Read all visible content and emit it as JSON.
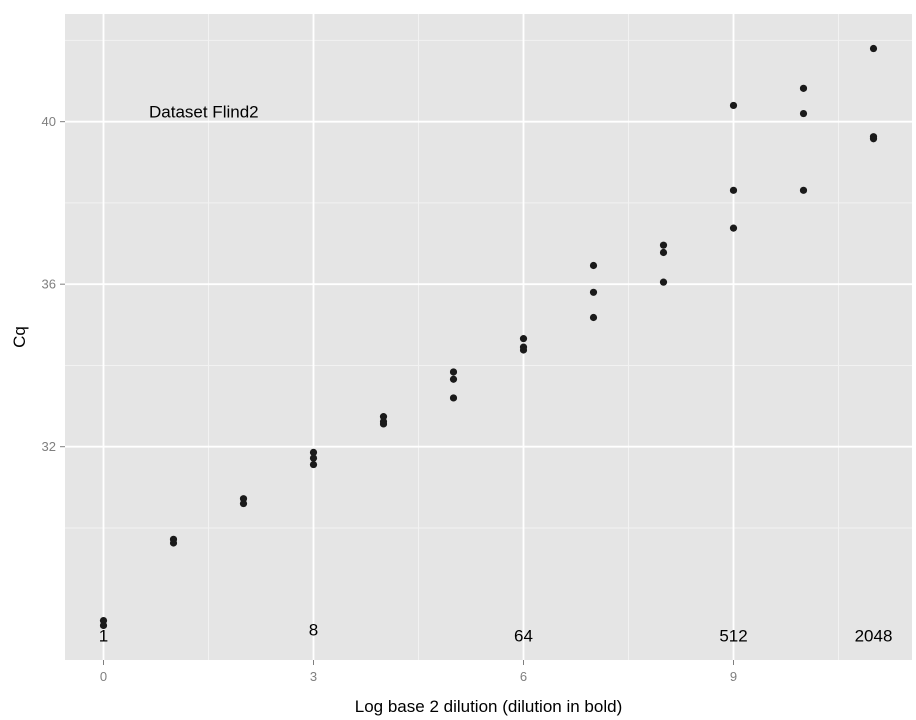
{
  "chart_data": {
    "type": "scatter",
    "title": "",
    "xlabel": "Log base 2 dilution (dilution in bold)",
    "ylabel": "Cq",
    "xlim": [
      -0.55,
      11.55
    ],
    "ylim": [
      26.75,
      42.65
    ],
    "x_ticks": [
      0,
      3,
      6,
      9
    ],
    "x_tick_labels": [
      "0",
      "3",
      "6",
      "9"
    ],
    "y_ticks": [
      32,
      36,
      40
    ],
    "y_tick_labels": [
      "32",
      "36",
      "40"
    ],
    "grid": true,
    "legend": "none",
    "annotation": {
      "text": "Dataset Flind2",
      "x": 0.65,
      "y": 40.1
    },
    "dilution_labels": [
      {
        "text": "1",
        "x": 0,
        "y": 27.2
      },
      {
        "text": "8",
        "x": 3,
        "y": 27.35
      },
      {
        "text": "64",
        "x": 6,
        "y": 27.2
      },
      {
        "text": "512",
        "x": 9,
        "y": 27.2
      },
      {
        "text": "2048",
        "x": 11,
        "y": 27.2
      }
    ],
    "points": [
      {
        "x": 0,
        "y": 27.72
      },
      {
        "x": 0,
        "y": 27.6
      },
      {
        "x": 1,
        "y": 29.72
      },
      {
        "x": 1,
        "y": 29.63
      },
      {
        "x": 2,
        "y": 30.72
      },
      {
        "x": 2,
        "y": 30.6
      },
      {
        "x": 3,
        "y": 31.86
      },
      {
        "x": 3,
        "y": 31.72
      },
      {
        "x": 3,
        "y": 31.56
      },
      {
        "x": 4,
        "y": 32.74
      },
      {
        "x": 4,
        "y": 32.62
      },
      {
        "x": 4,
        "y": 32.56
      },
      {
        "x": 5,
        "y": 33.84
      },
      {
        "x": 5,
        "y": 33.66
      },
      {
        "x": 5,
        "y": 33.2
      },
      {
        "x": 6,
        "y": 34.66
      },
      {
        "x": 6,
        "y": 34.45
      },
      {
        "x": 6,
        "y": 34.38
      },
      {
        "x": 7,
        "y": 36.46
      },
      {
        "x": 7,
        "y": 35.8
      },
      {
        "x": 7,
        "y": 35.18
      },
      {
        "x": 8,
        "y": 36.96
      },
      {
        "x": 8,
        "y": 36.78
      },
      {
        "x": 8,
        "y": 36.05
      },
      {
        "x": 9,
        "y": 40.4
      },
      {
        "x": 9,
        "y": 38.31
      },
      {
        "x": 9,
        "y": 37.38
      },
      {
        "x": 10,
        "y": 40.82
      },
      {
        "x": 10,
        "y": 40.2
      },
      {
        "x": 10,
        "y": 38.31
      },
      {
        "x": 11,
        "y": 41.8
      },
      {
        "x": 11,
        "y": 39.63
      },
      {
        "x": 11,
        "y": 39.58
      }
    ],
    "colors": {
      "panel_background": "#e5e5e5",
      "major_grid": "#ffffff",
      "minor_grid": "#f2f2f2",
      "point": "#1a1a1a",
      "tick_label": "#7f7f7f",
      "tick_mark": "#7f7f7f"
    }
  }
}
